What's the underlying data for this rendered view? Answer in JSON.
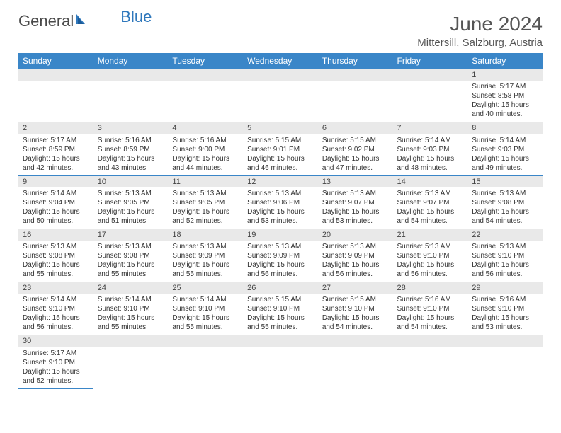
{
  "logo": {
    "text_general": "General",
    "text_blue": "Blue"
  },
  "header": {
    "month_title": "June 2024",
    "location": "Mittersill, Salzburg, Austria"
  },
  "colors": {
    "header_bg": "#3a86c8",
    "header_text": "#ffffff",
    "grid_line": "#3a86c8",
    "daynum_bg": "#e9e9e9",
    "text": "#333333",
    "logo_general": "#4a4a4a",
    "logo_blue": "#2f78bc"
  },
  "days_of_week": [
    "Sunday",
    "Monday",
    "Tuesday",
    "Wednesday",
    "Thursday",
    "Friday",
    "Saturday"
  ],
  "weeks": [
    [
      null,
      null,
      null,
      null,
      null,
      null,
      {
        "n": "1",
        "sunrise": "Sunrise: 5:17 AM",
        "sunset": "Sunset: 8:58 PM",
        "daylight": "Daylight: 15 hours and 40 minutes."
      }
    ],
    [
      {
        "n": "2",
        "sunrise": "Sunrise: 5:17 AM",
        "sunset": "Sunset: 8:59 PM",
        "daylight": "Daylight: 15 hours and 42 minutes."
      },
      {
        "n": "3",
        "sunrise": "Sunrise: 5:16 AM",
        "sunset": "Sunset: 8:59 PM",
        "daylight": "Daylight: 15 hours and 43 minutes."
      },
      {
        "n": "4",
        "sunrise": "Sunrise: 5:16 AM",
        "sunset": "Sunset: 9:00 PM",
        "daylight": "Daylight: 15 hours and 44 minutes."
      },
      {
        "n": "5",
        "sunrise": "Sunrise: 5:15 AM",
        "sunset": "Sunset: 9:01 PM",
        "daylight": "Daylight: 15 hours and 46 minutes."
      },
      {
        "n": "6",
        "sunrise": "Sunrise: 5:15 AM",
        "sunset": "Sunset: 9:02 PM",
        "daylight": "Daylight: 15 hours and 47 minutes."
      },
      {
        "n": "7",
        "sunrise": "Sunrise: 5:14 AM",
        "sunset": "Sunset: 9:03 PM",
        "daylight": "Daylight: 15 hours and 48 minutes."
      },
      {
        "n": "8",
        "sunrise": "Sunrise: 5:14 AM",
        "sunset": "Sunset: 9:03 PM",
        "daylight": "Daylight: 15 hours and 49 minutes."
      }
    ],
    [
      {
        "n": "9",
        "sunrise": "Sunrise: 5:14 AM",
        "sunset": "Sunset: 9:04 PM",
        "daylight": "Daylight: 15 hours and 50 minutes."
      },
      {
        "n": "10",
        "sunrise": "Sunrise: 5:13 AM",
        "sunset": "Sunset: 9:05 PM",
        "daylight": "Daylight: 15 hours and 51 minutes."
      },
      {
        "n": "11",
        "sunrise": "Sunrise: 5:13 AM",
        "sunset": "Sunset: 9:05 PM",
        "daylight": "Daylight: 15 hours and 52 minutes."
      },
      {
        "n": "12",
        "sunrise": "Sunrise: 5:13 AM",
        "sunset": "Sunset: 9:06 PM",
        "daylight": "Daylight: 15 hours and 53 minutes."
      },
      {
        "n": "13",
        "sunrise": "Sunrise: 5:13 AM",
        "sunset": "Sunset: 9:07 PM",
        "daylight": "Daylight: 15 hours and 53 minutes."
      },
      {
        "n": "14",
        "sunrise": "Sunrise: 5:13 AM",
        "sunset": "Sunset: 9:07 PM",
        "daylight": "Daylight: 15 hours and 54 minutes."
      },
      {
        "n": "15",
        "sunrise": "Sunrise: 5:13 AM",
        "sunset": "Sunset: 9:08 PM",
        "daylight": "Daylight: 15 hours and 54 minutes."
      }
    ],
    [
      {
        "n": "16",
        "sunrise": "Sunrise: 5:13 AM",
        "sunset": "Sunset: 9:08 PM",
        "daylight": "Daylight: 15 hours and 55 minutes."
      },
      {
        "n": "17",
        "sunrise": "Sunrise: 5:13 AM",
        "sunset": "Sunset: 9:08 PM",
        "daylight": "Daylight: 15 hours and 55 minutes."
      },
      {
        "n": "18",
        "sunrise": "Sunrise: 5:13 AM",
        "sunset": "Sunset: 9:09 PM",
        "daylight": "Daylight: 15 hours and 55 minutes."
      },
      {
        "n": "19",
        "sunrise": "Sunrise: 5:13 AM",
        "sunset": "Sunset: 9:09 PM",
        "daylight": "Daylight: 15 hours and 56 minutes."
      },
      {
        "n": "20",
        "sunrise": "Sunrise: 5:13 AM",
        "sunset": "Sunset: 9:09 PM",
        "daylight": "Daylight: 15 hours and 56 minutes."
      },
      {
        "n": "21",
        "sunrise": "Sunrise: 5:13 AM",
        "sunset": "Sunset: 9:10 PM",
        "daylight": "Daylight: 15 hours and 56 minutes."
      },
      {
        "n": "22",
        "sunrise": "Sunrise: 5:13 AM",
        "sunset": "Sunset: 9:10 PM",
        "daylight": "Daylight: 15 hours and 56 minutes."
      }
    ],
    [
      {
        "n": "23",
        "sunrise": "Sunrise: 5:14 AM",
        "sunset": "Sunset: 9:10 PM",
        "daylight": "Daylight: 15 hours and 56 minutes."
      },
      {
        "n": "24",
        "sunrise": "Sunrise: 5:14 AM",
        "sunset": "Sunset: 9:10 PM",
        "daylight": "Daylight: 15 hours and 55 minutes."
      },
      {
        "n": "25",
        "sunrise": "Sunrise: 5:14 AM",
        "sunset": "Sunset: 9:10 PM",
        "daylight": "Daylight: 15 hours and 55 minutes."
      },
      {
        "n": "26",
        "sunrise": "Sunrise: 5:15 AM",
        "sunset": "Sunset: 9:10 PM",
        "daylight": "Daylight: 15 hours and 55 minutes."
      },
      {
        "n": "27",
        "sunrise": "Sunrise: 5:15 AM",
        "sunset": "Sunset: 9:10 PM",
        "daylight": "Daylight: 15 hours and 54 minutes."
      },
      {
        "n": "28",
        "sunrise": "Sunrise: 5:16 AM",
        "sunset": "Sunset: 9:10 PM",
        "daylight": "Daylight: 15 hours and 54 minutes."
      },
      {
        "n": "29",
        "sunrise": "Sunrise: 5:16 AM",
        "sunset": "Sunset: 9:10 PM",
        "daylight": "Daylight: 15 hours and 53 minutes."
      }
    ],
    [
      {
        "n": "30",
        "sunrise": "Sunrise: 5:17 AM",
        "sunset": "Sunset: 9:10 PM",
        "daylight": "Daylight: 15 hours and 52 minutes."
      },
      null,
      null,
      null,
      null,
      null,
      null
    ]
  ]
}
